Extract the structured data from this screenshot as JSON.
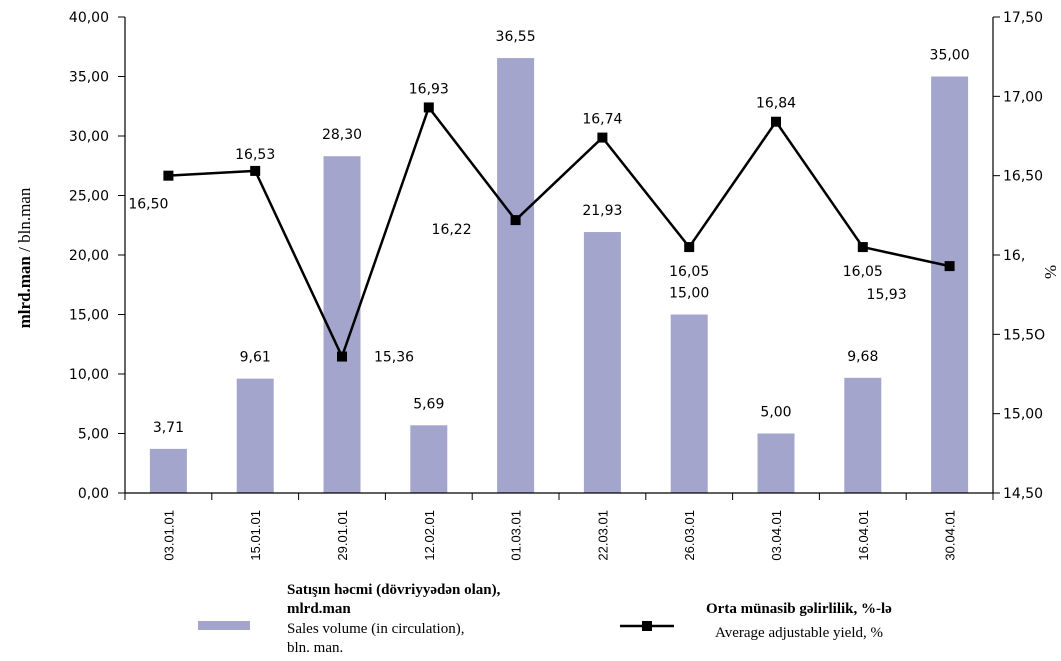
{
  "chart_data": {
    "type": "bar",
    "categories": [
      "03.01.01",
      "15.01.01",
      "29.01.01",
      "12.02.01",
      "01.03.01",
      "22.03.01",
      "26.03.01",
      "03.04.01",
      "16.04.01",
      "30.04.01"
    ],
    "series": [
      {
        "name": "Satışın həcmi (dövriyyədən olan), mlrd.man / Sales volume (in circulation), bln. man.",
        "type": "bar",
        "axis": "left",
        "values": [
          3.71,
          9.61,
          28.3,
          5.69,
          36.55,
          21.93,
          15.0,
          5.0,
          9.68,
          35.0
        ],
        "labels": [
          "3,71",
          "9,61",
          "28,30",
          "5,69",
          "36,55",
          "21,93",
          "15,00",
          "5,00",
          "9,68",
          "35,00"
        ],
        "color": "#a4a5cd"
      },
      {
        "name": "Orta münasib gəlirlilik, %-lə / Average adjustable yield, %",
        "type": "line",
        "axis": "right",
        "values": [
          16.5,
          16.53,
          15.36,
          16.93,
          16.22,
          16.74,
          16.05,
          16.84,
          16.05,
          15.93
        ],
        "labels": [
          "16,50",
          "16,53",
          "15,36",
          "16,93",
          "16,22",
          "16,74",
          "16,05",
          "16,84",
          "16,05",
          "15,93"
        ],
        "color": "#000000"
      }
    ],
    "y_left": {
      "label_bold": "mlrd.man",
      "label_rest": " / bln.man",
      "ylim": [
        0,
        40
      ],
      "ticks": [
        "0,00",
        "5,00",
        "10,00",
        "15,00",
        "20,00",
        "25,00",
        "30,00",
        "35,00",
        "40,00"
      ]
    },
    "y_right": {
      "label": "%",
      "ylim": [
        14.5,
        17.5
      ],
      "ticks": [
        "14,50",
        "15,00",
        "15,5O",
        "16,",
        "16,50",
        "17,00",
        "17,50"
      ],
      "tick_values": [
        14.5,
        15.0,
        15.5,
        16.0,
        16.5,
        17.0,
        17.5
      ]
    },
    "grid": false
  },
  "legend": {
    "bar_title": "Satışın həcmi (dövriyyədən olan),",
    "bar_title_2": "mlrd.man",
    "bar_sub": "Sales volume (in circulation),",
    "bar_sub_2": "bln. man.",
    "line_title": "Orta münasib gəlirlilik, %-lə",
    "line_sub": "Average adjustable yield, %"
  }
}
